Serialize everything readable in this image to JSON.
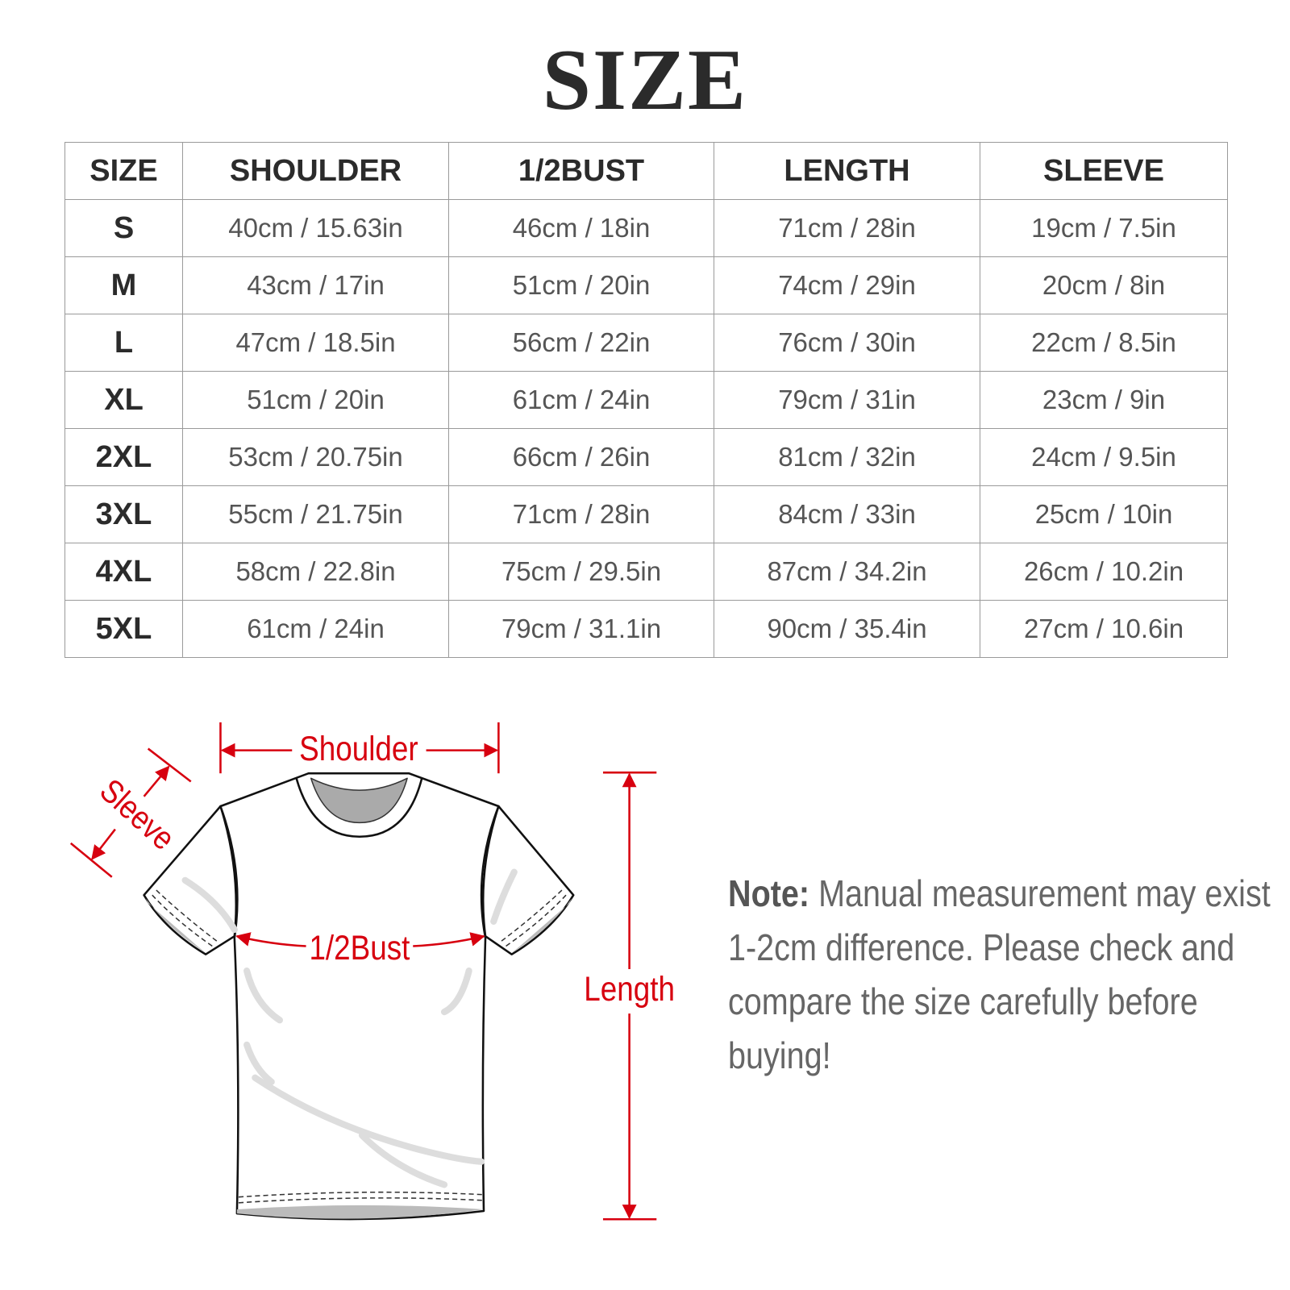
{
  "title": "SIZE",
  "table": {
    "headers": [
      "SIZE",
      "SHOULDER",
      "1/2BUST",
      "LENGTH",
      "SLEEVE"
    ],
    "rows": [
      [
        "S",
        "40cm / 15.63in",
        "46cm / 18in",
        "71cm / 28in",
        "19cm / 7.5in"
      ],
      [
        "M",
        "43cm / 17in",
        "51cm / 20in",
        "74cm / 29in",
        "20cm / 8in"
      ],
      [
        "L",
        "47cm / 18.5in",
        "56cm / 22in",
        "76cm / 30in",
        "22cm / 8.5in"
      ],
      [
        "XL",
        "51cm / 20in",
        "61cm / 24in",
        "79cm / 31in",
        "23cm / 9in"
      ],
      [
        "2XL",
        "53cm / 20.75in",
        "66cm / 26in",
        "81cm / 32in",
        "24cm / 9.5in"
      ],
      [
        "3XL",
        "55cm / 21.75in",
        "71cm / 28in",
        "84cm / 33in",
        "25cm / 10in"
      ],
      [
        "4XL",
        "58cm / 22.8in",
        "75cm / 29.5in",
        "87cm / 34.2in",
        "26cm / 10.2in"
      ],
      [
        "5XL",
        "61cm / 24in",
        "79cm / 31.1in",
        "90cm / 35.4in",
        "27cm / 10.6in"
      ]
    ]
  },
  "diagram": {
    "shoulder_label": "Shoulder",
    "sleeve_label": "Sleeve",
    "bust_label": "1/2Bust",
    "length_label": "Length",
    "accent_color": "#d7000f"
  },
  "note": {
    "prefix": "Note:",
    "text": "Manual measurement may exist 1-2cm difference. Please check and compare the size carefully before buying!"
  }
}
